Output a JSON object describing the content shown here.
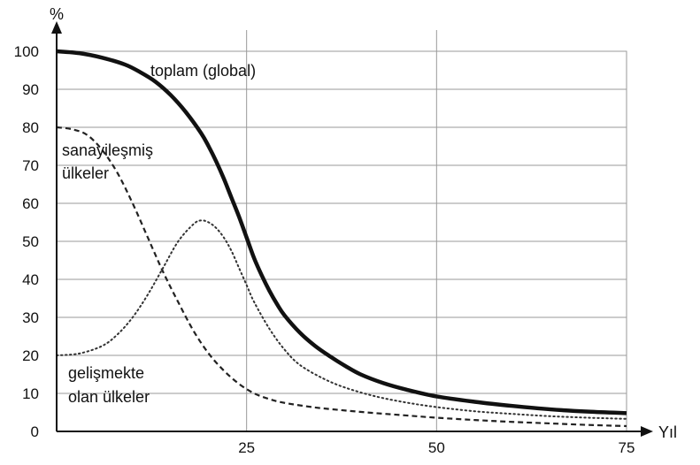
{
  "chart_data": {
    "type": "line",
    "title": "",
    "xlabel": "Yıl",
    "ylabel": "%",
    "xlim": [
      0,
      75
    ],
    "ylim": [
      0,
      100
    ],
    "xticks": [
      25,
      50,
      75
    ],
    "xtick_labels": [
      "25",
      "50",
      "75"
    ],
    "yticks": [
      0,
      10,
      20,
      30,
      40,
      50,
      60,
      70,
      80,
      90,
      100
    ],
    "ytick_labels": [
      "0",
      "10",
      "20",
      "30",
      "40",
      "50",
      "60",
      "70",
      "80",
      "90",
      "100"
    ],
    "xgrid": [
      25,
      50
    ],
    "ygrid": [
      10,
      20,
      30,
      40,
      50,
      60,
      70,
      80,
      90,
      100
    ],
    "series": [
      {
        "name": "toplam (global)",
        "style": "solid",
        "color": "#111111",
        "x": [
          0,
          3,
          6,
          9,
          11,
          13,
          15,
          17,
          19,
          20,
          21,
          22,
          23,
          24,
          25,
          26,
          27,
          28,
          29,
          30,
          32,
          34,
          36,
          38,
          40,
          43,
          46,
          50,
          55,
          60,
          65,
          70,
          75
        ],
        "y": [
          100,
          99.5,
          98.3,
          96.5,
          94.5,
          92,
          88.5,
          84,
          78.5,
          75,
          71,
          66.5,
          61.5,
          56.5,
          51,
          45.5,
          41,
          37,
          33.5,
          30.5,
          26,
          22.5,
          19.7,
          17.2,
          15,
          12.7,
          11,
          9.2,
          7.8,
          6.7,
          5.8,
          5.2,
          4.8
        ]
      },
      {
        "name": "sanayileşmiş ülkeler",
        "style": "dashed",
        "color": "#222222",
        "x": [
          0,
          2,
          4,
          6,
          8,
          10,
          12,
          14,
          16,
          18,
          20,
          22,
          24,
          26,
          28,
          30,
          34,
          38,
          42,
          46,
          50,
          55,
          60,
          65,
          70,
          75
        ],
        "y": [
          80,
          79.5,
          78,
          74,
          68,
          60,
          51,
          42,
          34,
          26.5,
          20.5,
          16,
          12.5,
          10,
          8.5,
          7.5,
          6.3,
          5.5,
          4.8,
          4.2,
          3.6,
          3.0,
          2.5,
          2.1,
          1.7,
          1.4
        ]
      },
      {
        "name": "gelişmekte olan ülkeler",
        "style": "dotted",
        "color": "#333333",
        "x": [
          0,
          3,
          6,
          8,
          10,
          12,
          14,
          16,
          18,
          19,
          20,
          21,
          22,
          23,
          24,
          25,
          26,
          28,
          30,
          32,
          35,
          38,
          42,
          46,
          50,
          55,
          60,
          65,
          70,
          75
        ],
        "y": [
          20,
          20.5,
          22.5,
          25.5,
          30,
          36,
          43,
          50,
          54.5,
          55.5,
          55,
          53.5,
          51,
          47.5,
          43,
          38.5,
          34,
          27,
          21.5,
          17.5,
          14,
          11.5,
          9.2,
          7.6,
          6.4,
          5.3,
          4.6,
          4.0,
          3.6,
          3.3
        ]
      }
    ],
    "annotations": {
      "toplam": "toplam (global)",
      "sanayi_line1": "sanayileşmiş",
      "sanayi_line2": "ülkeler",
      "gelisme_line1": "gelişmekte",
      "gelisme_line2": "olan ülkeler"
    },
    "legend": "none"
  }
}
